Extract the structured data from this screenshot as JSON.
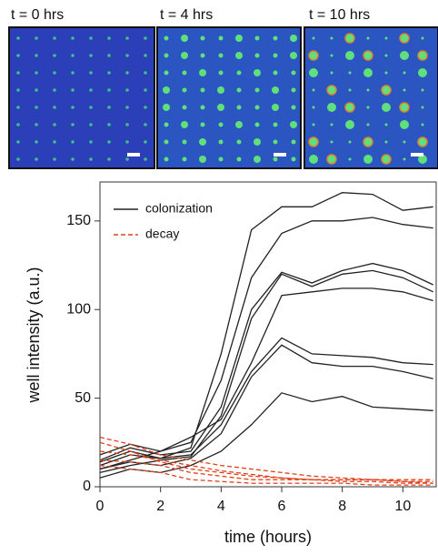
{
  "panels": [
    {
      "label": "t = 0 hrs"
    },
    {
      "label": "t = 4 hrs"
    },
    {
      "label": "t = 10 hrs"
    }
  ],
  "chart_data": {
    "type": "line",
    "xlabel": "time (hours)",
    "ylabel": "well intensity (a.u.)",
    "x": [
      0,
      1,
      2,
      3,
      4,
      5,
      6,
      7,
      8,
      9,
      10,
      11
    ],
    "xlim": [
      0,
      11.1
    ],
    "xticks": [
      0,
      2,
      4,
      6,
      8,
      10
    ],
    "ylim": [
      0,
      172
    ],
    "yticks": [
      0,
      50,
      100,
      150
    ],
    "legend": "upper left",
    "series": [
      {
        "name": "colonization",
        "color": "#222222",
        "dash": false,
        "lines": [
          [
            12,
            18,
            16,
            22,
            75,
            145,
            158,
            158,
            166,
            165,
            156,
            158
          ],
          [
            10,
            15,
            20,
            25,
            60,
            118,
            143,
            150,
            150,
            152,
            148,
            146
          ],
          [
            15,
            22,
            18,
            20,
            45,
            100,
            121,
            115,
            122,
            126,
            122,
            114
          ],
          [
            8,
            12,
            15,
            17,
            40,
            95,
            120,
            113,
            120,
            122,
            118,
            110
          ],
          [
            18,
            24,
            20,
            28,
            38,
            70,
            108,
            110,
            112,
            112,
            110,
            105
          ],
          [
            14,
            20,
            16,
            18,
            35,
            65,
            84,
            75,
            74,
            73,
            70,
            69
          ],
          [
            10,
            14,
            12,
            16,
            30,
            62,
            80,
            70,
            68,
            68,
            65,
            61
          ],
          [
            5,
            10,
            8,
            12,
            20,
            35,
            53,
            48,
            51,
            45,
            44,
            43
          ]
        ]
      },
      {
        "name": "decay",
        "color": "#e0401a",
        "dash": true,
        "lines": [
          [
            28,
            24,
            18,
            15,
            12,
            10,
            8,
            6,
            5,
            4,
            3,
            2
          ],
          [
            25,
            20,
            14,
            10,
            8,
            6,
            5,
            4,
            3,
            3,
            2,
            2
          ],
          [
            20,
            18,
            15,
            12,
            9,
            7,
            5,
            4,
            4,
            4,
            3,
            3
          ],
          [
            15,
            14,
            12,
            8,
            6,
            4,
            4,
            4,
            4,
            4,
            4,
            4
          ],
          [
            12,
            10,
            8,
            4,
            3,
            2,
            2,
            2,
            2,
            1,
            1,
            1
          ]
        ]
      }
    ]
  }
}
